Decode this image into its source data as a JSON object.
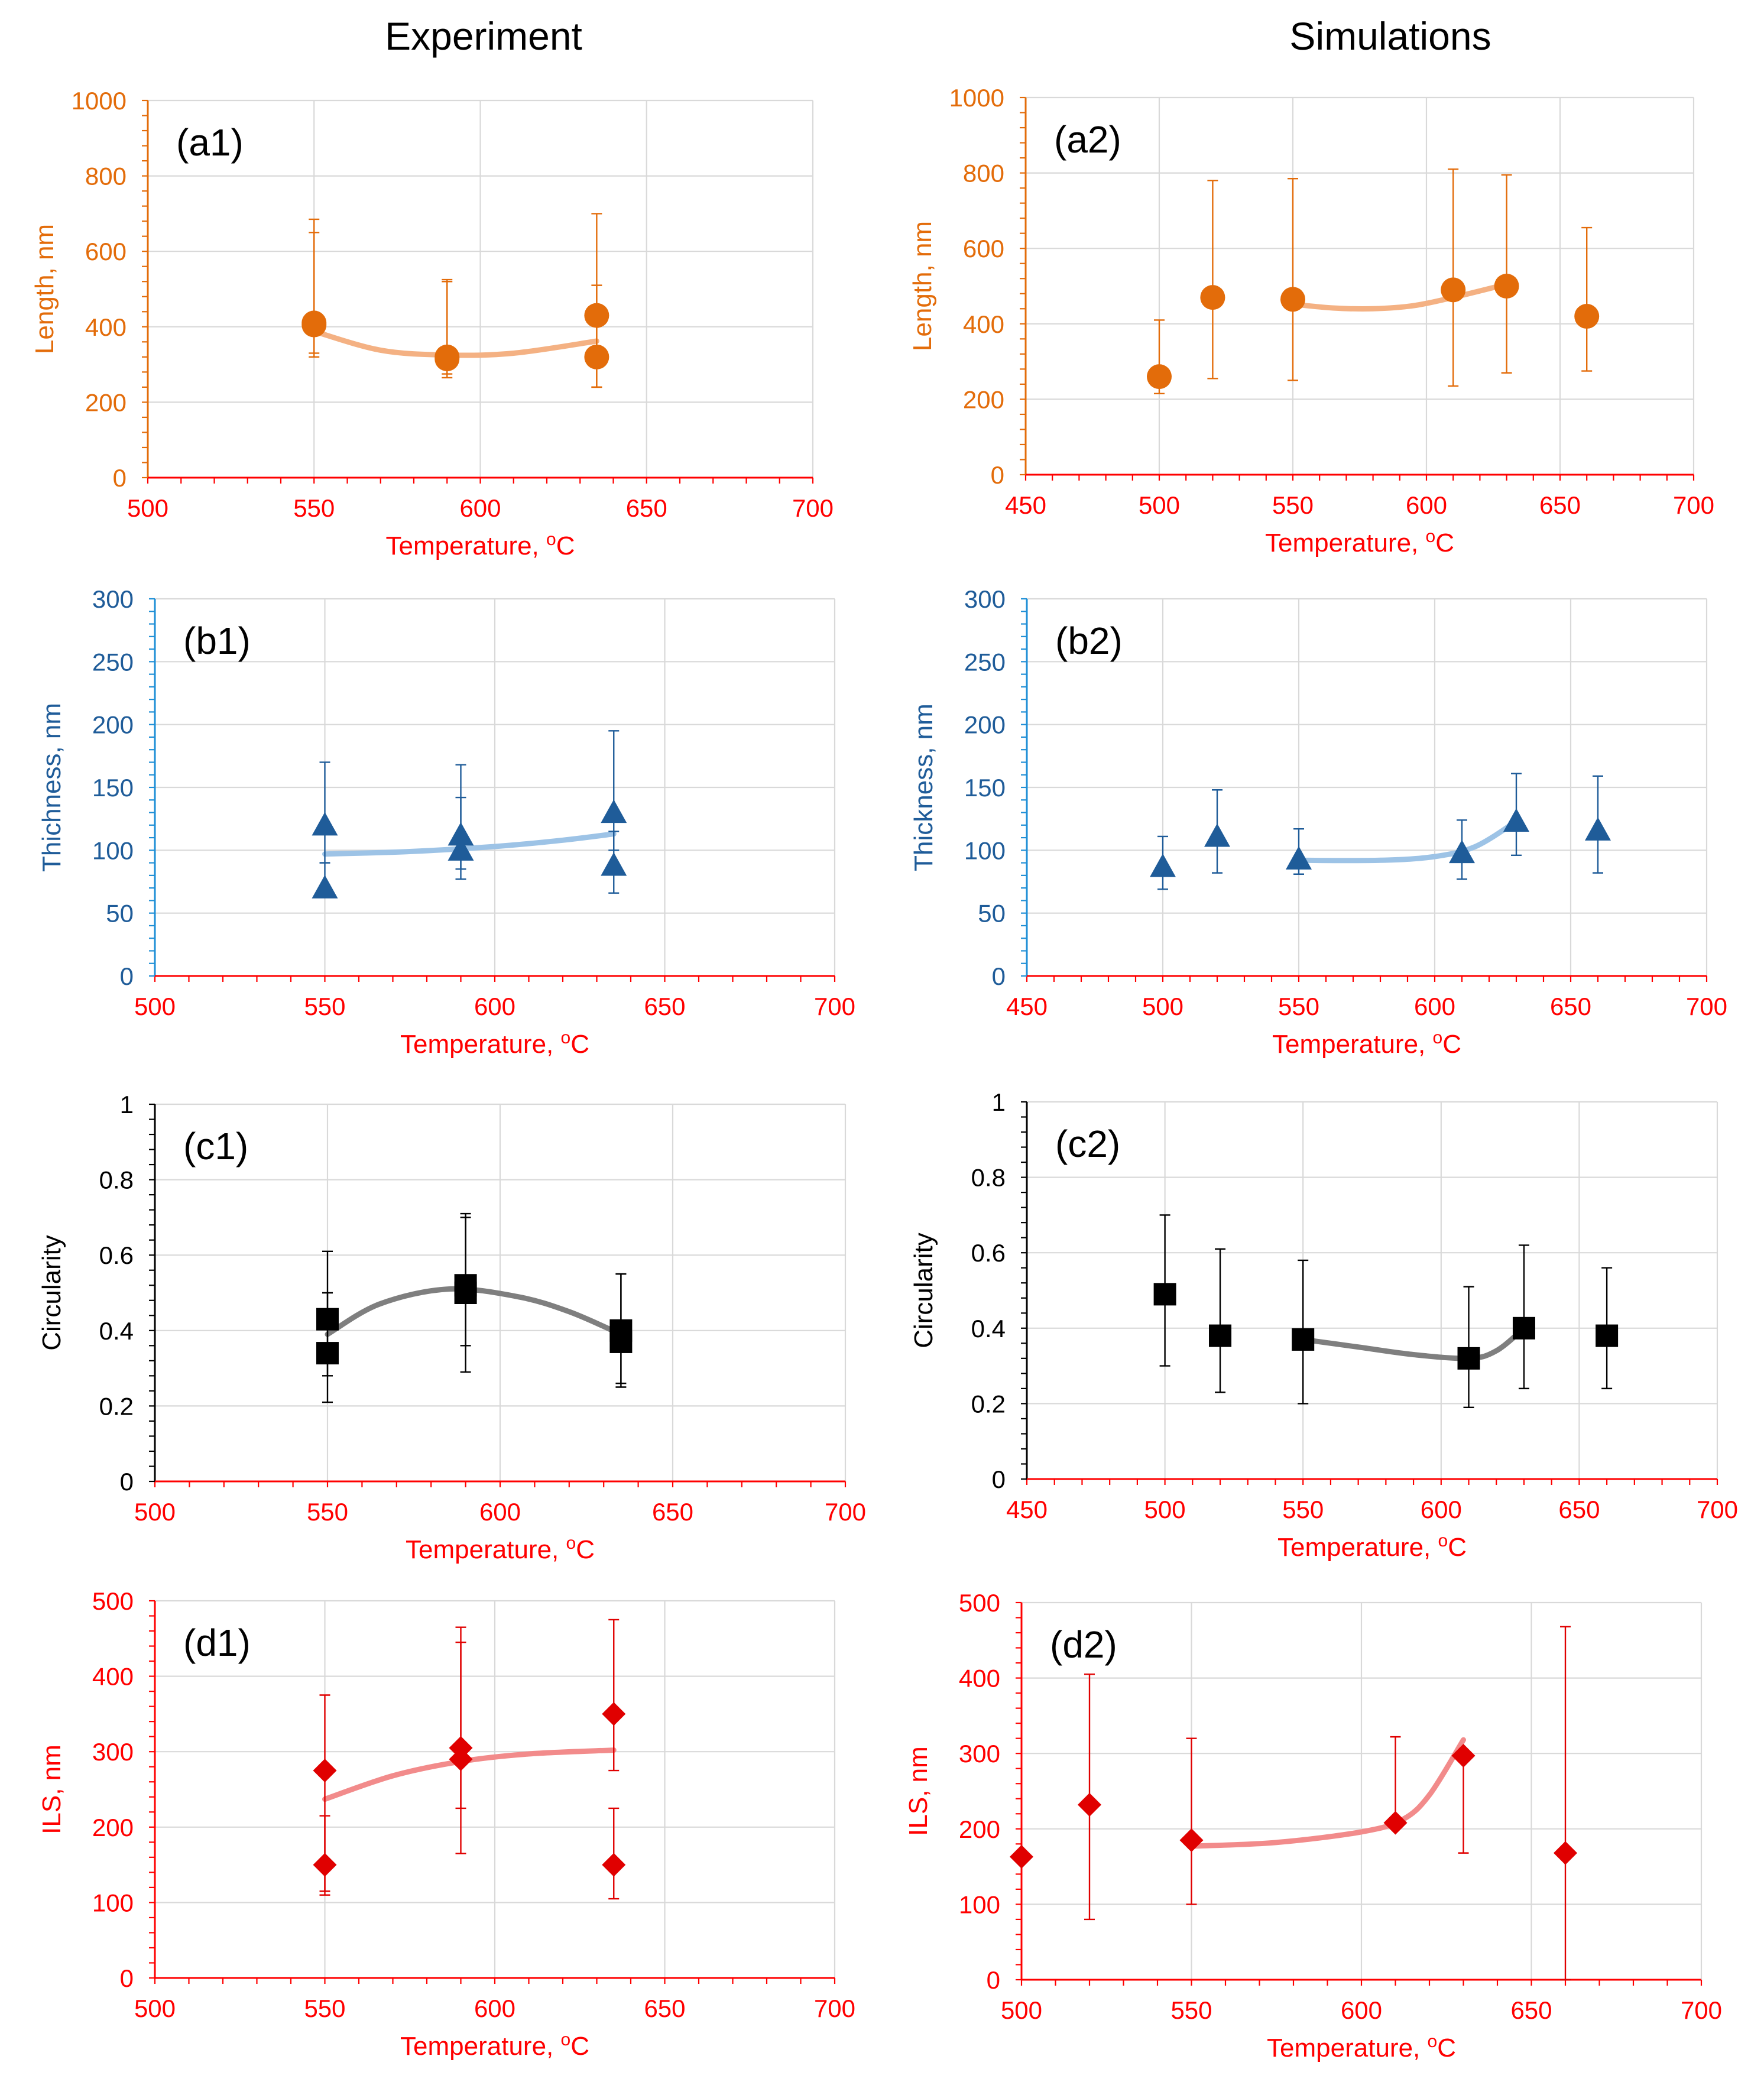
{
  "figure": {
    "column_titles": [
      "Experiment",
      "Simulations"
    ]
  },
  "chart_data": [
    {
      "id": "a1",
      "panel_label": "(a1)",
      "type": "scatter",
      "xlabel": "Temperature, ",
      "xlabel_sup": "o",
      "xlabel_unit": "C",
      "ylabel": "Length, nm",
      "xlim": [
        500,
        700
      ],
      "xticks": [
        500,
        550,
        600,
        650,
        700
      ],
      "ylim": [
        0,
        1000
      ],
      "yticks": [
        0,
        200,
        400,
        600,
        800,
        1000
      ],
      "ytick_format": "int",
      "marker": "circle",
      "colors": {
        "marker": "#E36C0A",
        "trend": "#F4B183",
        "ytick": "#E36C0A",
        "ylabel": "#E36C0A",
        "xtick": "#FF0000",
        "xlabel": "#FF0000",
        "yaxis": "#E36C0A",
        "xaxis": "#FF0000",
        "errorbar": "#E36C0A"
      },
      "points": [
        {
          "x": 550,
          "y": 405,
          "lo": 320,
          "hi": 685
        },
        {
          "x": 550,
          "y": 410,
          "lo": 330,
          "hi": 650
        },
        {
          "x": 590,
          "y": 320,
          "lo": 275,
          "hi": 525
        },
        {
          "x": 590,
          "y": 315,
          "lo": 265,
          "hi": 520
        },
        {
          "x": 635,
          "y": 430,
          "lo": 240,
          "hi": 700
        },
        {
          "x": 635,
          "y": 320,
          "lo": 240,
          "hi": 510
        }
      ],
      "trend": [
        [
          550,
          388
        ],
        [
          570,
          338
        ],
        [
          590,
          325
        ],
        [
          610,
          330
        ],
        [
          635,
          362
        ]
      ]
    },
    {
      "id": "a2",
      "panel_label": "(a2)",
      "type": "scatter",
      "xlabel": "Temperature, ",
      "xlabel_sup": "o",
      "xlabel_unit": "C",
      "ylabel": "Length, nm",
      "xlim": [
        450,
        700
      ],
      "xticks": [
        450,
        500,
        550,
        600,
        650,
        700
      ],
      "ylim": [
        0,
        1000
      ],
      "yticks": [
        0,
        200,
        400,
        600,
        800,
        1000
      ],
      "ytick_format": "int",
      "marker": "circle",
      "colors": {
        "marker": "#E36C0A",
        "trend": "#F4B183",
        "ytick": "#E36C0A",
        "ylabel": "#E36C0A",
        "xtick": "#FF0000",
        "xlabel": "#FF0000",
        "yaxis": "#E36C0A",
        "xaxis": "#FF0000",
        "errorbar": "#E36C0A"
      },
      "points": [
        {
          "x": 500,
          "y": 260,
          "lo": 215,
          "hi": 410
        },
        {
          "x": 520,
          "y": 470,
          "lo": 255,
          "hi": 780
        },
        {
          "x": 550,
          "y": 465,
          "lo": 250,
          "hi": 785
        },
        {
          "x": 610,
          "y": 490,
          "lo": 235,
          "hi": 810
        },
        {
          "x": 630,
          "y": 500,
          "lo": 270,
          "hi": 795
        },
        {
          "x": 660,
          "y": 420,
          "lo": 275,
          "hi": 655
        }
      ],
      "trend": [
        [
          550,
          452
        ],
        [
          565,
          442
        ],
        [
          580,
          440
        ],
        [
          595,
          448
        ],
        [
          610,
          470
        ],
        [
          630,
          505
        ]
      ]
    },
    {
      "id": "b1",
      "panel_label": "(b1)",
      "type": "scatter",
      "xlabel": "Temperature, ",
      "xlabel_sup": "o",
      "xlabel_unit": "C",
      "ylabel": "Thichness, nm",
      "xlim": [
        500,
        700
      ],
      "xticks": [
        500,
        550,
        600,
        650,
        700
      ],
      "ylim": [
        0,
        300
      ],
      "yticks": [
        0,
        50,
        100,
        150,
        200,
        250,
        300
      ],
      "ytick_format": "int",
      "marker": "triangle",
      "colors": {
        "marker": "#1F5C99",
        "trend": "#9DC3E6",
        "ytick": "#1F5C99",
        "ylabel": "#1F5C99",
        "xtick": "#FF0000",
        "xlabel": "#FF0000",
        "yaxis": "#1F8FD6",
        "xaxis": "#FF0000",
        "errorbar": "#1F5C99"
      },
      "points": [
        {
          "x": 550,
          "y": 120,
          "lo": 90,
          "hi": 170
        },
        {
          "x": 550,
          "y": 70,
          "lo": 70,
          "hi": 90
        },
        {
          "x": 590,
          "y": 112,
          "lo": 85,
          "hi": 168
        },
        {
          "x": 590,
          "y": 100,
          "lo": 77,
          "hi": 142
        },
        {
          "x": 635,
          "y": 130,
          "lo": 100,
          "hi": 195
        },
        {
          "x": 635,
          "y": 88,
          "lo": 66,
          "hi": 115
        }
      ],
      "trend": [
        [
          550,
          97
        ],
        [
          575,
          99
        ],
        [
          600,
          103
        ],
        [
          620,
          108
        ],
        [
          635,
          113
        ]
      ]
    },
    {
      "id": "b2",
      "panel_label": "(b2)",
      "type": "scatter",
      "xlabel": "Temperature, ",
      "xlabel_sup": "o",
      "xlabel_unit": "C",
      "ylabel": "Thickness, nm",
      "xlim": [
        450,
        700
      ],
      "xticks": [
        450,
        500,
        550,
        600,
        650,
        700
      ],
      "ylim": [
        0,
        300
      ],
      "yticks": [
        0,
        50,
        100,
        150,
        200,
        250,
        300
      ],
      "ytick_format": "int",
      "marker": "triangle",
      "colors": {
        "marker": "#1F5C99",
        "trend": "#9DC3E6",
        "ytick": "#1F5C99",
        "ylabel": "#1F5C99",
        "xtick": "#FF0000",
        "xlabel": "#FF0000",
        "yaxis": "#1F8FD6",
        "xaxis": "#FF0000",
        "errorbar": "#1F5C99"
      },
      "points": [
        {
          "x": 500,
          "y": 87,
          "lo": 69,
          "hi": 111
        },
        {
          "x": 520,
          "y": 111,
          "lo": 82,
          "hi": 148
        },
        {
          "x": 550,
          "y": 93,
          "lo": 81,
          "hi": 117
        },
        {
          "x": 610,
          "y": 98,
          "lo": 77,
          "hi": 124
        },
        {
          "x": 630,
          "y": 123,
          "lo": 96,
          "hi": 161
        },
        {
          "x": 660,
          "y": 116,
          "lo": 82,
          "hi": 159
        }
      ],
      "trend": [
        [
          550,
          92
        ],
        [
          580,
          92
        ],
        [
          600,
          95
        ],
        [
          615,
          103
        ],
        [
          630,
          123
        ]
      ]
    },
    {
      "id": "c1",
      "panel_label": "(c1)",
      "type": "scatter",
      "xlabel": "Temperature, ",
      "xlabel_sup": "o",
      "xlabel_unit": "C",
      "ylabel": "Circularity",
      "xlim": [
        500,
        700
      ],
      "xticks": [
        500,
        550,
        600,
        650,
        700
      ],
      "ylim": [
        0,
        1
      ],
      "yticks": [
        0,
        0.2,
        0.4,
        0.6,
        0.8,
        1
      ],
      "ytick_format": "short",
      "marker": "square",
      "colors": {
        "marker": "#000000",
        "trend": "#7F7F7F",
        "ytick": "#000000",
        "ylabel": "#000000",
        "xtick": "#FF0000",
        "xlabel": "#FF0000",
        "yaxis": "#000000",
        "xaxis": "#FF0000",
        "errorbar": "#000000"
      },
      "points": [
        {
          "x": 550,
          "y": 0.43,
          "lo": 0.28,
          "hi": 0.61
        },
        {
          "x": 550,
          "y": 0.34,
          "lo": 0.21,
          "hi": 0.5
        },
        {
          "x": 590,
          "y": 0.52,
          "lo": 0.36,
          "hi": 0.71
        },
        {
          "x": 590,
          "y": 0.5,
          "lo": 0.29,
          "hi": 0.7
        },
        {
          "x": 635,
          "y": 0.4,
          "lo": 0.25,
          "hi": 0.55
        },
        {
          "x": 635,
          "y": 0.37,
          "lo": 0.26,
          "hi": 0.55
        }
      ],
      "trend": [
        [
          550,
          0.39
        ],
        [
          565,
          0.47
        ],
        [
          585,
          0.51
        ],
        [
          605,
          0.49
        ],
        [
          620,
          0.45
        ],
        [
          635,
          0.39
        ]
      ]
    },
    {
      "id": "c2",
      "panel_label": "(c2)",
      "type": "scatter",
      "xlabel": "Temperature, ",
      "xlabel_sup": "o",
      "xlabel_unit": "C",
      "ylabel": "Circularity",
      "xlim": [
        450,
        700
      ],
      "xticks": [
        450,
        500,
        550,
        600,
        650,
        700
      ],
      "ylim": [
        0,
        1
      ],
      "yticks": [
        0,
        0.2,
        0.4,
        0.6,
        0.8,
        1
      ],
      "ytick_format": "short",
      "marker": "square",
      "colors": {
        "marker": "#000000",
        "trend": "#7F7F7F",
        "ytick": "#000000",
        "ylabel": "#000000",
        "xtick": "#FF0000",
        "xlabel": "#FF0000",
        "yaxis": "#000000",
        "xaxis": "#FF0000",
        "errorbar": "#000000"
      },
      "points": [
        {
          "x": 500,
          "y": 0.49,
          "lo": 0.3,
          "hi": 0.7
        },
        {
          "x": 520,
          "y": 0.38,
          "lo": 0.23,
          "hi": 0.61
        },
        {
          "x": 550,
          "y": 0.37,
          "lo": 0.2,
          "hi": 0.58
        },
        {
          "x": 610,
          "y": 0.32,
          "lo": 0.19,
          "hi": 0.51
        },
        {
          "x": 630,
          "y": 0.4,
          "lo": 0.24,
          "hi": 0.62
        },
        {
          "x": 660,
          "y": 0.38,
          "lo": 0.24,
          "hi": 0.56
        }
      ],
      "trend": [
        [
          550,
          0.37
        ],
        [
          570,
          0.35
        ],
        [
          590,
          0.33
        ],
        [
          610,
          0.32
        ],
        [
          620,
          0.34
        ],
        [
          630,
          0.4
        ]
      ]
    },
    {
      "id": "d1",
      "panel_label": "(d1)",
      "type": "scatter",
      "xlabel": "Temperature, ",
      "xlabel_sup": "o",
      "xlabel_unit": "C",
      "ylabel": "ILS, nm",
      "xlim": [
        500,
        700
      ],
      "xticks": [
        500,
        550,
        600,
        650,
        700
      ],
      "ylim": [
        0,
        500
      ],
      "yticks": [
        0,
        100,
        200,
        300,
        400,
        500
      ],
      "ytick_format": "int",
      "marker": "diamond",
      "colors": {
        "marker": "#E00000",
        "trend": "#F28B8B",
        "ytick": "#FF0000",
        "ylabel": "#FF0000",
        "xtick": "#FF0000",
        "xlabel": "#FF0000",
        "yaxis": "#FF0000",
        "xaxis": "#FF0000",
        "errorbar": "#E00000"
      },
      "points": [
        {
          "x": 550,
          "y": 275,
          "lo": 110,
          "hi": 375
        },
        {
          "x": 550,
          "y": 150,
          "lo": 115,
          "hi": 215
        },
        {
          "x": 590,
          "y": 305,
          "lo": 165,
          "hi": 465
        },
        {
          "x": 590,
          "y": 290,
          "lo": 225,
          "hi": 445
        },
        {
          "x": 635,
          "y": 350,
          "lo": 275,
          "hi": 475
        },
        {
          "x": 635,
          "y": 150,
          "lo": 105,
          "hi": 225
        }
      ],
      "trend": [
        [
          550,
          237
        ],
        [
          570,
          268
        ],
        [
          590,
          287
        ],
        [
          610,
          297
        ],
        [
          635,
          302
        ]
      ]
    },
    {
      "id": "d2",
      "panel_label": "(d2)",
      "type": "scatter",
      "xlabel": "Temperature, ",
      "xlabel_sup": "o",
      "xlabel_unit": "C",
      "ylabel": "ILS, nm",
      "xlim": [
        500,
        700
      ],
      "xticks": [
        500,
        550,
        600,
        650,
        700
      ],
      "ylim": [
        0,
        500
      ],
      "yticks": [
        0,
        100,
        200,
        300,
        400,
        500
      ],
      "ytick_format": "int",
      "marker": "diamond",
      "colors": {
        "marker": "#E00000",
        "trend": "#F28B8B",
        "ytick": "#FF0000",
        "ylabel": "#FF0000",
        "xtick": "#FF0000",
        "xlabel": "#FF0000",
        "yaxis": "#FF0000",
        "xaxis": "#FF0000",
        "errorbar": "#E00000"
      },
      "points": [
        {
          "x": 500,
          "y": 163,
          "lo": 163,
          "hi": 163
        },
        {
          "x": 520,
          "y": 232,
          "lo": 80,
          "hi": 405
        },
        {
          "x": 550,
          "y": 185,
          "lo": 100,
          "hi": 320
        },
        {
          "x": 610,
          "y": 208,
          "lo": 208,
          "hi": 322
        },
        {
          "x": 630,
          "y": 297,
          "lo": 168,
          "hi": 297
        },
        {
          "x": 660,
          "y": 168,
          "lo": 0,
          "hi": 468
        }
      ],
      "trend": [
        [
          550,
          177
        ],
        [
          575,
          182
        ],
        [
          600,
          196
        ],
        [
          612,
          212
        ],
        [
          620,
          245
        ],
        [
          630,
          318
        ]
      ]
    }
  ]
}
